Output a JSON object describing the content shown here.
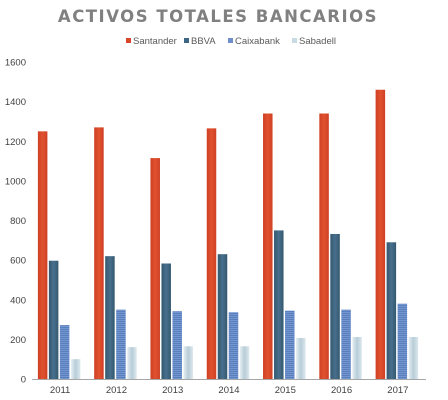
{
  "chart_data": {
    "type": "bar",
    "title": "ACTIVOS TOTALES BANCARIOS",
    "xlabel": "",
    "ylabel": "",
    "categories": [
      "2011",
      "2012",
      "2013",
      "2014",
      "2015",
      "2016",
      "2017"
    ],
    "ylim": [
      0,
      1600
    ],
    "yticks": [
      "0",
      "200",
      "400",
      "600",
      "800",
      "1000",
      "1200",
      "1400",
      "1600"
    ],
    "legend_position": "top",
    "grid": false,
    "series": [
      {
        "name": "Santander",
        "color": "#d9472b",
        "values": [
          1250,
          1270,
          1115,
          1265,
          1340,
          1340,
          1460
        ]
      },
      {
        "name": "BBVA",
        "color": "#3d6584",
        "values": [
          597,
          620,
          583,
          630,
          750,
          732,
          690
        ]
      },
      {
        "name": "Caixabank",
        "color": "#6e8fcc",
        "values": [
          272,
          350,
          342,
          337,
          345,
          350,
          380
        ]
      },
      {
        "name": "Sabadell",
        "color": "#c9dbe3",
        "values": [
          100,
          161,
          165,
          165,
          207,
          212,
          212
        ]
      }
    ]
  }
}
